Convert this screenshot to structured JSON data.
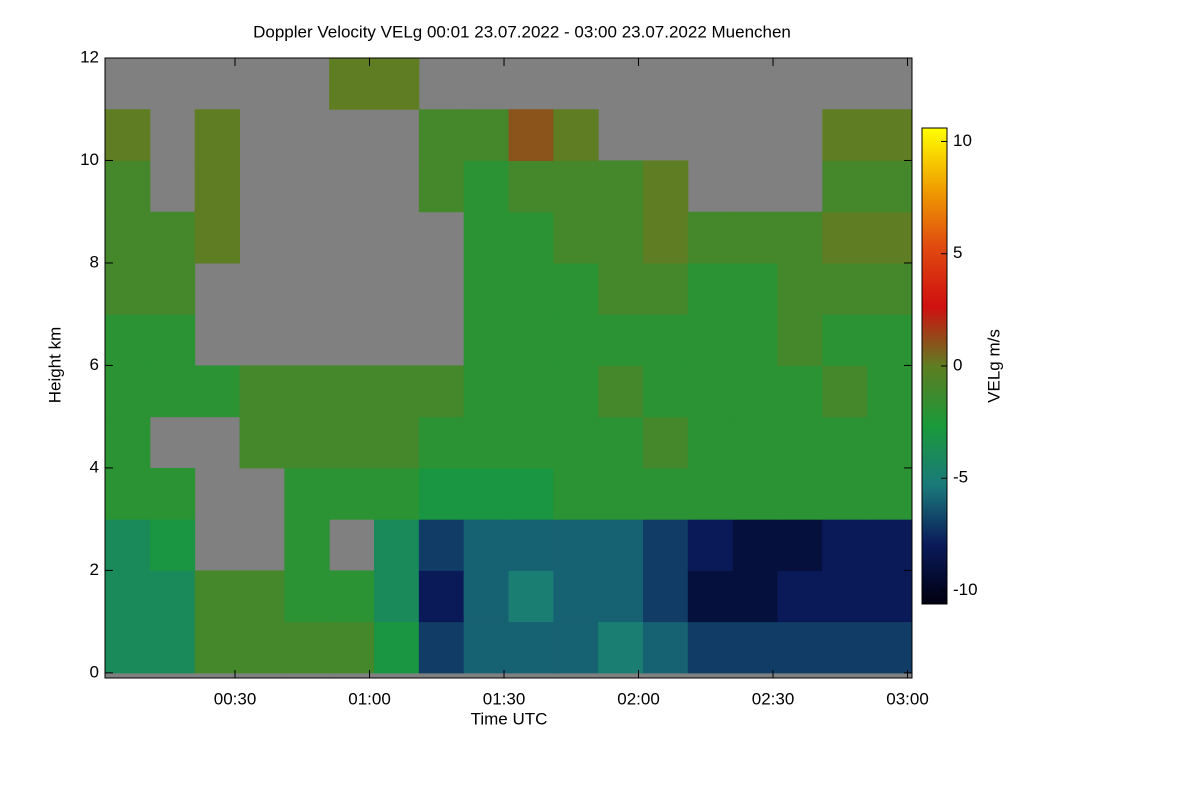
{
  "chart_data": {
    "type": "heatmap",
    "title": "Doppler Velocity VELg   00:01 23.07.2022 - 03:00 23.07.2022 Muenchen",
    "xlabel": "Time UTC",
    "ylabel": "Height km",
    "colorbar_label": "VELg m/s",
    "x_bins": [
      1,
      11,
      21,
      31,
      41,
      51,
      61,
      71,
      81,
      91,
      101,
      111,
      121,
      131,
      141,
      151,
      161,
      171,
      181
    ],
    "y_bins": [
      0,
      1,
      2,
      3,
      4,
      5,
      6,
      7,
      8,
      9,
      10,
      11,
      12
    ],
    "z": [
      [
        -4,
        -4,
        -1,
        -1,
        -1,
        -1,
        -3,
        -7,
        -6,
        -6,
        -6,
        -5,
        -6,
        -7,
        -7,
        -7,
        -7,
        -7
      ],
      [
        -4,
        -4,
        -1,
        -1,
        -2,
        -2,
        -4,
        -8,
        -6,
        -5,
        -6,
        -6,
        -7,
        -9,
        -9,
        -8,
        -8,
        -8
      ],
      [
        -4,
        -3,
        null,
        null,
        -2,
        null,
        -4,
        -7,
        -6,
        -6,
        -6,
        -6,
        -7,
        -8,
        -9,
        -9,
        -8,
        -8
      ],
      [
        -2,
        -2,
        null,
        null,
        -2,
        -2,
        -2,
        -3,
        -3,
        -3,
        -2,
        -2,
        -2,
        -2,
        -2,
        -2,
        -2,
        -2
      ],
      [
        -2,
        null,
        null,
        -1,
        -1,
        -1,
        -1,
        -2,
        -2,
        -2,
        -2,
        -2,
        -1,
        -2,
        -2,
        -2,
        -2,
        -2
      ],
      [
        -2,
        -2,
        -2,
        -1,
        -1,
        -1,
        -1,
        -1,
        -2,
        -2,
        -2,
        -1,
        -2,
        -2,
        -2,
        -2,
        -1,
        -2
      ],
      [
        -2,
        -2,
        null,
        null,
        null,
        null,
        null,
        null,
        -2,
        -2,
        -2,
        -2,
        -2,
        -2,
        -2,
        -1,
        -2,
        -2
      ],
      [
        -1,
        -1,
        null,
        null,
        null,
        null,
        null,
        null,
        -2,
        -2,
        -2,
        -1,
        -1,
        -2,
        -2,
        -1,
        -1,
        -1
      ],
      [
        -1,
        -1,
        0,
        null,
        null,
        null,
        null,
        null,
        -2,
        -2,
        -1,
        -1,
        0,
        -1,
        -1,
        -1,
        0,
        0
      ],
      [
        -1,
        null,
        0,
        null,
        null,
        null,
        null,
        -1,
        -2,
        -1,
        -1,
        -1,
        0,
        null,
        null,
        null,
        -1,
        -1
      ],
      [
        0,
        null,
        0,
        null,
        null,
        null,
        null,
        -1,
        -1,
        1,
        0,
        null,
        null,
        null,
        null,
        null,
        0,
        0
      ],
      [
        null,
        null,
        null,
        null,
        null,
        0,
        0,
        null,
        null,
        null,
        null,
        null,
        null,
        null,
        null,
        null,
        null,
        null
      ]
    ],
    "xlim": [
      1,
      181
    ],
    "xticks": [
      {
        "value": 30,
        "label": "00:30"
      },
      {
        "value": 60,
        "label": "01:00"
      },
      {
        "value": 90,
        "label": "01:30"
      },
      {
        "value": 120,
        "label": "02:00"
      },
      {
        "value": 150,
        "label": "02:30"
      },
      {
        "value": 180,
        "label": "03:00"
      }
    ],
    "ylim": [
      -0.1,
      12
    ],
    "yticks": [
      0,
      2,
      4,
      6,
      8,
      10,
      12
    ],
    "zlim": [
      -10.6,
      10.6
    ],
    "zticks": [
      10,
      5,
      0,
      -5,
      -10
    ],
    "colormap": [
      "#000010",
      "#0a1a5a",
      "#1a7a7a",
      "#1a9a3a",
      "#5f7d22",
      "#d01010",
      "#e04a10",
      "#f0a000",
      "#ffff00"
    ],
    "missing_color": "#808080"
  }
}
